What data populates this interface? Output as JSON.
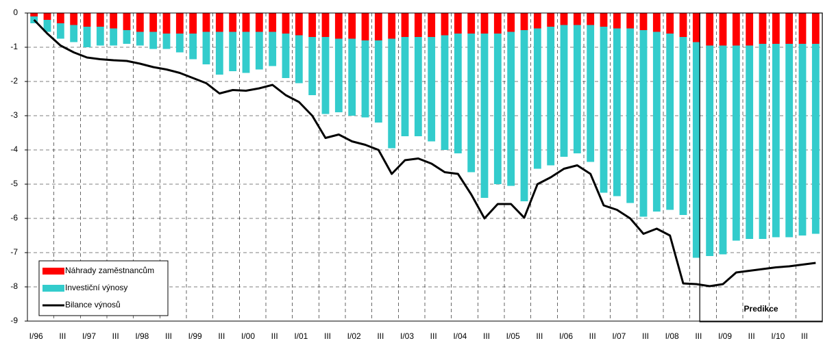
{
  "chart_data": {
    "type": "bar",
    "stacked": true,
    "categories": [
      "I/96",
      null,
      "III",
      null,
      "I/97",
      null,
      "III",
      null,
      "I/98",
      null,
      "III",
      null,
      "I/99",
      null,
      "III",
      null,
      "I/00",
      null,
      "III",
      null,
      "I/01",
      null,
      "III",
      null,
      "I/02",
      null,
      "III",
      null,
      "I/03",
      null,
      "III",
      null,
      "I/04",
      null,
      "III",
      null,
      "I/05",
      null,
      "III",
      null,
      "I/06",
      null,
      "III",
      null,
      "I/07",
      null,
      "III",
      null,
      "I/08",
      null,
      "III",
      null,
      "I/09",
      null,
      "III",
      null,
      "I/10",
      null,
      "III",
      null
    ],
    "series": [
      {
        "name": "Náhrady zaměstnancům",
        "color": "#ff0000",
        "type": "bar",
        "values": [
          -0.1,
          -0.2,
          -0.3,
          -0.35,
          -0.4,
          -0.4,
          -0.45,
          -0.5,
          -0.55,
          -0.55,
          -0.6,
          -0.6,
          -0.6,
          -0.55,
          -0.55,
          -0.55,
          -0.55,
          -0.55,
          -0.55,
          -0.6,
          -0.65,
          -0.7,
          -0.7,
          -0.75,
          -0.75,
          -0.8,
          -0.8,
          -0.75,
          -0.7,
          -0.7,
          -0.7,
          -0.65,
          -0.6,
          -0.6,
          -0.6,
          -0.6,
          -0.55,
          -0.5,
          -0.45,
          -0.4,
          -0.35,
          -0.35,
          -0.35,
          -0.4,
          -0.45,
          -0.45,
          -0.5,
          -0.55,
          -0.6,
          -0.7,
          -0.85,
          -0.95,
          -0.95,
          -0.95,
          -0.95,
          -0.9,
          -0.9,
          -0.9,
          -0.9,
          -0.9
        ]
      },
      {
        "name": "Investiční výnosy",
        "color": "#33cccc",
        "type": "bar",
        "values": [
          -0.2,
          -0.35,
          -0.45,
          -0.5,
          -0.6,
          -0.55,
          -0.5,
          -0.4,
          -0.4,
          -0.5,
          -0.45,
          -0.55,
          -0.75,
          -0.95,
          -1.25,
          -1.15,
          -1.2,
          -1.1,
          -1.0,
          -1.3,
          -1.4,
          -1.7,
          -2.25,
          -2.15,
          -2.25,
          -2.25,
          -2.4,
          -3.2,
          -2.9,
          -2.9,
          -3.05,
          -3.35,
          -3.5,
          -4.05,
          -4.8,
          -4.4,
          -4.5,
          -5.0,
          -4.1,
          -4.05,
          -3.85,
          -3.75,
          -4.0,
          -4.85,
          -4.9,
          -5.1,
          -5.45,
          -5.25,
          -5.15,
          -5.2,
          -6.3,
          -6.15,
          -6.1,
          -5.7,
          -5.65,
          -5.7,
          -5.65,
          -5.65,
          -5.6,
          -5.55
        ]
      },
      {
        "name": "Bilance výnosů",
        "color": "#000000",
        "type": "line",
        "values": [
          -0.2,
          -0.6,
          -0.95,
          -1.15,
          -1.3,
          -1.35,
          -1.38,
          -1.4,
          -1.48,
          -1.58,
          -1.65,
          -1.75,
          -1.9,
          -2.05,
          -2.35,
          -2.25,
          -2.27,
          -2.2,
          -2.1,
          -2.4,
          -2.6,
          -3.0,
          -3.65,
          -3.55,
          -3.75,
          -3.85,
          -4.0,
          -4.7,
          -4.3,
          -4.25,
          -4.4,
          -4.65,
          -4.7,
          -5.3,
          -6.0,
          -5.58,
          -5.58,
          -5.98,
          -5.0,
          -4.8,
          -4.55,
          -4.45,
          -4.7,
          -5.62,
          -5.75,
          -6.0,
          -6.45,
          -6.3,
          -6.5,
          -7.9,
          -7.92,
          -7.98,
          -7.92,
          -7.58,
          -7.53,
          -7.48,
          -7.43,
          -7.4,
          -7.35,
          -7.3
        ]
      }
    ],
    "ylim": [
      -9,
      0
    ],
    "yticks": [
      0,
      -1,
      -2,
      -3,
      -4,
      -5,
      -6,
      -7,
      -8,
      -9
    ],
    "grid": true,
    "legend": "lower left",
    "annotation": "Predikce"
  }
}
